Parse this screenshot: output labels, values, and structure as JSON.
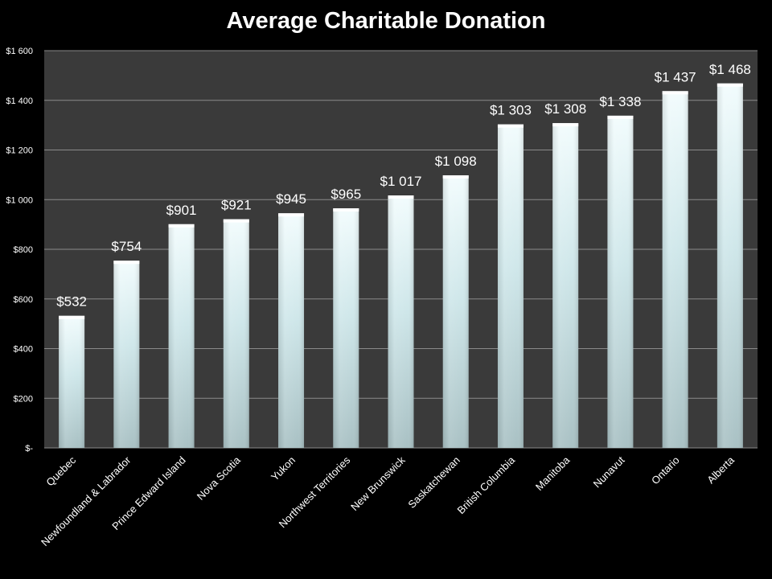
{
  "chart_data": {
    "type": "bar",
    "title": "Average Charitable Donation",
    "xlabel": "",
    "ylabel": "",
    "categories": [
      "Quebec",
      "Newfoundland & Labrador",
      "Prince Edward Island",
      "Nova Scotia",
      "Yukon",
      "Northwest Territories",
      "New Brunswick",
      "Saskatchewan",
      "British Columbia",
      "Manitoba",
      "Nunavut",
      "Ontario",
      "Alberta"
    ],
    "values": [
      532,
      754,
      901,
      921,
      945,
      965,
      1017,
      1098,
      1303,
      1308,
      1338,
      1437,
      1468
    ],
    "data_labels": [
      "$532",
      "$754",
      "$901",
      "$921",
      "$945",
      "$965",
      "$1 017",
      "$1 098",
      "$1 303",
      "$1 308",
      "$1 338",
      "$1 437",
      "$1 468"
    ],
    "ylim": [
      0,
      1600
    ],
    "yticks": [
      0,
      200,
      400,
      600,
      800,
      1000,
      1200,
      1400,
      1600
    ],
    "ytick_labels": [
      "$-",
      "$200",
      "$400",
      "$600",
      "$800",
      "$1 000",
      "$1 200",
      "$1 400",
      "$1 600"
    ],
    "grid": true,
    "legend": "none",
    "colors": {
      "background": "#000000",
      "plot_area": "#3a3a3a",
      "gridline": "#8a8a8a",
      "bar_top": "#f2fcfd",
      "bar_mid": "#cfe7ea",
      "bar_bottom": "#a9c1c4",
      "text": "#ffffff"
    }
  }
}
